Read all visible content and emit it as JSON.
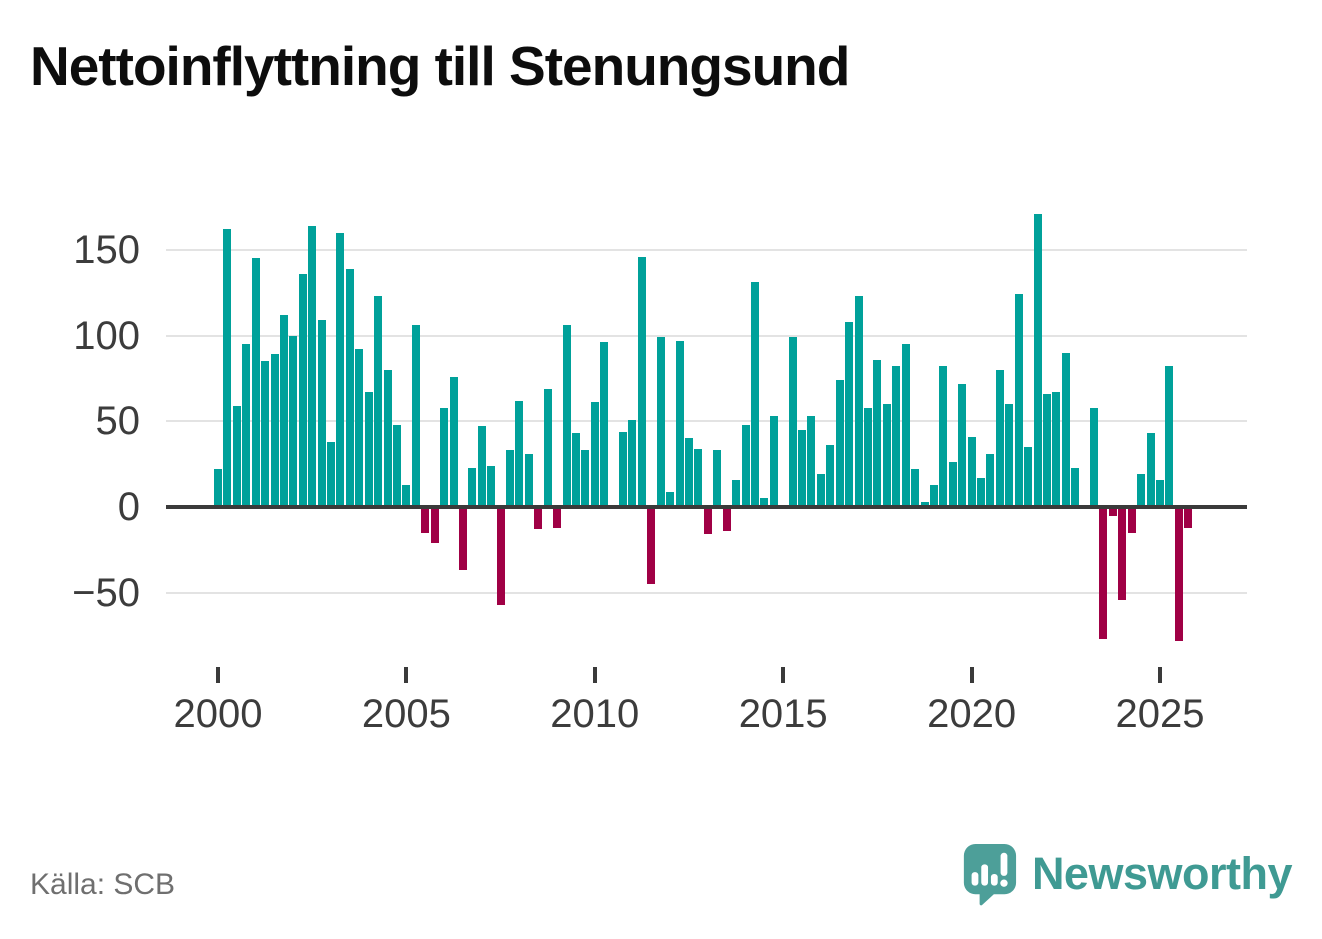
{
  "title": "Nettoinflyttning till Stenungsund",
  "source_label": "Källa: SCB",
  "branding": {
    "name": "Newsworthy",
    "icon": "newsworthy-speech-bubble-chart-icon",
    "color": "#3f9a93"
  },
  "colors": {
    "positive_bar": "#00a19a",
    "negative_bar": "#a00045",
    "zero_axis": "#3a3a3a",
    "gridline": "#e3e3e3",
    "axis_text": "#3c3c3c",
    "muted_text": "#6f6f6f",
    "title_text": "#0d0d0d"
  },
  "chart_data": {
    "type": "bar",
    "title": "Nettoinflyttning till Stenungsund",
    "frequency": "quarterly",
    "start_period": "2000-Q1",
    "end_period": "2025-Q4",
    "values": [
      22,
      162,
      59,
      95,
      145,
      85,
      89,
      112,
      100,
      136,
      164,
      109,
      38,
      160,
      139,
      92,
      67,
      123,
      80,
      48,
      13,
      106,
      -15,
      -21,
      58,
      76,
      -37,
      23,
      47,
      24,
      -57,
      33,
      62,
      31,
      -13,
      69,
      -12,
      106,
      43,
      33,
      61,
      96,
      0,
      44,
      51,
      146,
      -45,
      99,
      9,
      97,
      40,
      34,
      -16,
      33,
      -14,
      16,
      48,
      131,
      5,
      53,
      0,
      99,
      45,
      53,
      19,
      36,
      74,
      108,
      123,
      58,
      86,
      60,
      82,
      95,
      22,
      3,
      13,
      82,
      26,
      72,
      41,
      17,
      31,
      80,
      60,
      124,
      35,
      171,
      66,
      67,
      90,
      23,
      0,
      58,
      -77,
      -5,
      -54,
      -15,
      19,
      43,
      16,
      82,
      -78,
      -12
    ],
    "y_ticks": [
      150,
      100,
      50,
      0,
      -50
    ],
    "y_tick_labels": [
      "150",
      "100",
      "50",
      "0",
      "−50"
    ],
    "x_tick_years": [
      2000,
      2005,
      2010,
      2015,
      2020,
      2025
    ],
    "x_tick_labels": [
      "2000",
      "2005",
      "2010",
      "2015",
      "2020",
      "2025"
    ],
    "ylim": [
      -85,
      175
    ],
    "grid": "horizontal-only",
    "legend": "none",
    "positive_color": "#00a19a",
    "negative_color": "#a00045",
    "source": "SCB"
  }
}
